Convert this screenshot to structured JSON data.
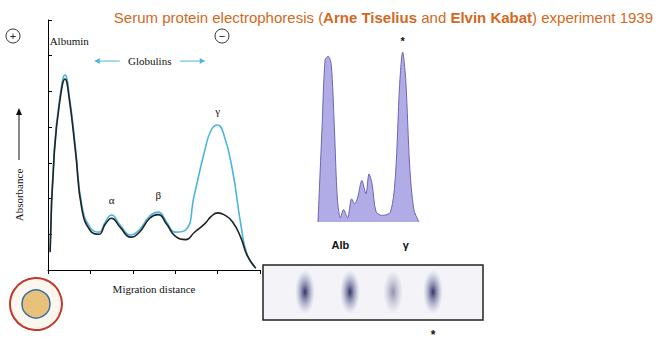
{
  "title": "Serum protein electrophoresis (Arne Tiselius and Elvin Kabat) experiment 1939",
  "title_bold": [
    "Arne Tiselius",
    "Elvin Kabat"
  ],
  "chart_data": [
    {
      "type": "line",
      "x_label": "Migration distance",
      "y_label": "Absorbance",
      "electrodes": [
        "+",
        "−"
      ],
      "x": [
        0.1,
        0.3,
        0.6,
        0.8,
        1.0,
        1.3,
        1.6,
        2.0,
        2.4,
        2.7,
        3.0,
        3.4,
        3.9,
        4.3,
        4.8,
        5.2,
        5.6,
        6.0,
        6.5,
        6.9,
        7.4,
        7.7,
        8.0,
        8.3,
        8.7,
        9.1,
        9.4,
        9.8
      ],
      "series": [
        {
          "color": "#4bb6dd",
          "values": [
            0.56,
            3.4,
            5.0,
            5.46,
            4.9,
            3.4,
            1.8,
            1.18,
            1.06,
            1.34,
            1.54,
            1.26,
            0.98,
            1.12,
            1.51,
            1.62,
            1.34,
            1.06,
            1.12,
            2.1,
            3.36,
            3.92,
            4.06,
            3.78,
            2.8,
            1.26,
            0.42,
            0.06
          ]
        },
        {
          "color": "#222222",
          "values": [
            0.5,
            3.3,
            4.9,
            5.35,
            4.8,
            3.3,
            1.7,
            1.1,
            1.0,
            1.28,
            1.45,
            1.2,
            0.92,
            1.05,
            1.45,
            1.55,
            1.28,
            0.95,
            0.85,
            1.05,
            1.3,
            1.5,
            1.6,
            1.55,
            1.35,
            0.9,
            0.4,
            0.05
          ]
        }
      ],
      "xlim": [
        0,
        10
      ],
      "ylim": [
        0,
        7
      ],
      "xticks": [
        0,
        2,
        4,
        6,
        8,
        10
      ],
      "yticks": [
        0,
        1,
        2,
        3,
        4,
        5,
        6,
        7
      ],
      "tick_labels": false,
      "grid": false,
      "annotations": [
        {
          "text": "Albumin",
          "x": 1.0,
          "y": 6.4
        },
        {
          "text": "Globulins",
          "x": 4.8,
          "y": 5.85
        },
        {
          "text": "α",
          "x": 3.0,
          "y": 1.95
        },
        {
          "text": "β",
          "x": 5.2,
          "y": 2.1
        },
        {
          "text": "γ",
          "x": 8.0,
          "y": 4.45
        }
      ]
    },
    {
      "type": "area",
      "x": [
        0,
        0.4,
        0.7,
        1.0,
        1.3,
        1.6,
        1.9,
        2.2,
        2.5,
        2.9,
        3.3,
        3.6,
        3.9,
        4.3,
        4.7,
        5.0,
        5.3,
        5.7,
        6.3,
        7.1,
        7.6,
        8.0,
        8.3,
        8.6,
        9.0,
        9.4,
        9.9
      ],
      "values": [
        0,
        5.75,
        9.8,
        10.0,
        9.5,
        5.75,
        1.4,
        0.25,
        0.75,
        0.25,
        1.4,
        1.1,
        1.5,
        2.5,
        1.7,
        2.9,
        2.3,
        0.6,
        0.4,
        0.6,
        2.9,
        8.25,
        10.25,
        8.6,
        3.25,
        0.75,
        0
      ],
      "color": "#b1abe6",
      "xlim": [
        0,
        10
      ],
      "ylim": [
        0,
        10.5
      ],
      "tick_labels": false,
      "grid": false,
      "annotations": [
        {
          "text": "*",
          "x": 8.3,
          "y": 10.9
        },
        {
          "text": "Alb",
          "x": 2.2,
          "y": -1.4
        },
        {
          "text": "γ",
          "x": 8.6,
          "y": -1.4
        }
      ],
      "gel": {
        "mark": "*"
      }
    }
  ]
}
